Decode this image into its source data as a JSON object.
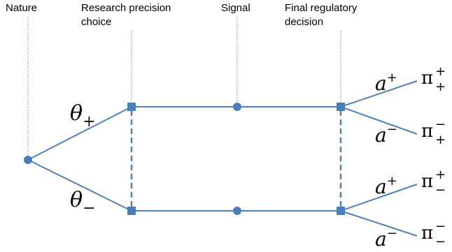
{
  "headers": {
    "nature": "Nature",
    "research": "Research precision\nchoice",
    "signal": "Signal",
    "decision": "Final regulatory\ndecision"
  },
  "branches": {
    "upper": {
      "base": "θ",
      "sub": "+"
    },
    "lower": {
      "base": "θ",
      "sub": "−"
    }
  },
  "actions": {
    "a_plus": {
      "base": "a",
      "sup": "+"
    },
    "a_minus": {
      "base": "a",
      "sup": "−"
    }
  },
  "payoffs": {
    "pp": {
      "base": "π",
      "sup": "+",
      "sub": "+"
    },
    "mp": {
      "base": "π",
      "sup": "−",
      "sub": "+"
    },
    "pm": {
      "base": "π",
      "sup": "+",
      "sub": "−"
    },
    "mm": {
      "base": "π",
      "sup": "−",
      "sub": "−"
    }
  },
  "colors": {
    "line": "#4f81bd",
    "node": "#4a7ebb",
    "guide": "#4f81bd"
  }
}
